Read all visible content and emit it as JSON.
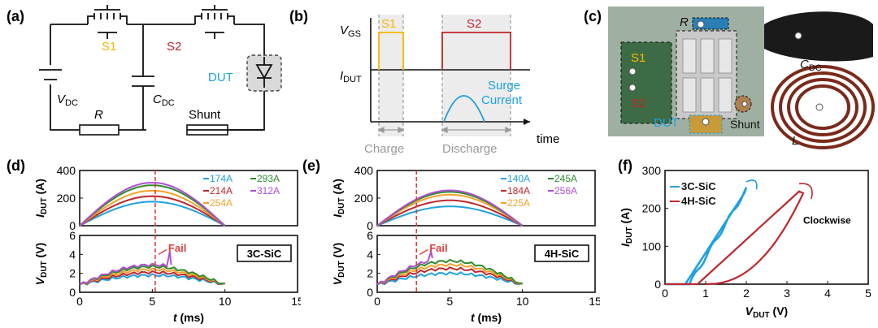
{
  "panels": {
    "a": {
      "letter": "(a)",
      "labels": {
        "s1": "S1",
        "s2": "S2",
        "vdc": "V",
        "vdc_sub": "DC",
        "cdc": "C",
        "cdc_sub": "DC",
        "dut": "DUT",
        "r": "R",
        "shunt": "Shunt"
      }
    },
    "b": {
      "letter": "(b)",
      "labels": {
        "vgs": "V",
        "vgs_sub": "GS",
        "idut": "I",
        "idut_sub": "DUT",
        "s1": "S1",
        "s2": "S2",
        "surge1": "Surge",
        "surge2": "Current",
        "time": "time",
        "charge": "Charge",
        "discharge": "Discharge"
      }
    },
    "c": {
      "letter": "(c)",
      "labels": {
        "r": "R",
        "s1": "S1",
        "s2": "S2",
        "cdc": "C",
        "cdc_sub": "DC",
        "dut": "DUT",
        "shunt": "Shunt",
        "l": "L"
      }
    },
    "d": {
      "letter": "(d)",
      "device": "3C-SiC",
      "fail": "Fail"
    },
    "e": {
      "letter": "(e)",
      "device": "4H-SiC",
      "fail": "Fail"
    },
    "f": {
      "letter": "(f)",
      "clockwise": "Clockwise"
    }
  },
  "colors": {
    "yellow": "#F5B800",
    "red": "#C0262D",
    "blue": "#1EA1E0",
    "green": "#2E8B2E",
    "purple": "#B04FD0",
    "orange": "#F4A12A",
    "dashred": "#E23C3C",
    "grey": "#888888"
  },
  "chart_data": [
    {
      "id": "d",
      "type": "line",
      "ylabel_top": "I",
      "ylabel_top_sub": "DUT",
      "ylabel_top_unit": " (A)",
      "ylabel_bot": "V",
      "ylabel_bot_sub": "DUT",
      "ylabel_bot_unit": " (V)",
      "xlabel": "t",
      "xlabel_unit": " (ms)",
      "xlim": [
        0,
        15
      ],
      "xticks": [
        "0",
        "5",
        "10",
        "15"
      ],
      "ylim_top": [
        0,
        400
      ],
      "yticks_top": [
        "0",
        "200",
        "400"
      ],
      "ylim_bot": [
        0,
        6
      ],
      "yticks_bot": [
        "0",
        "2",
        "4",
        "6"
      ],
      "fail_t": 5.2,
      "series": [
        {
          "name": "174A",
          "color": "#1EA1E0",
          "peak": 174,
          "vpeak": 1.8
        },
        {
          "name": "214A",
          "color": "#C0262D",
          "peak": 214,
          "vpeak": 2.1
        },
        {
          "name": "254A",
          "color": "#F4A12A",
          "peak": 254,
          "vpeak": 2.4
        },
        {
          "name": "293A",
          "color": "#2E8B2E",
          "peak": 293,
          "vpeak": 2.7
        },
        {
          "name": "312A",
          "color": "#B04FD0",
          "peak": 312,
          "vpeak": 2.9,
          "fail": true
        }
      ],
      "legend_order": [
        0,
        3,
        1,
        4,
        2
      ]
    },
    {
      "id": "e",
      "type": "line",
      "ylabel_top": "I",
      "ylabel_top_sub": "DUT",
      "ylabel_top_unit": " (A)",
      "ylabel_bot": "V",
      "ylabel_bot_sub": "DUT",
      "ylabel_bot_unit": " (V)",
      "xlabel": "t",
      "xlabel_unit": " (ms)",
      "xlim": [
        0,
        15
      ],
      "xticks": [
        "0",
        "5",
        "10",
        "15"
      ],
      "ylim_top": [
        0,
        400
      ],
      "yticks_top": [
        "0",
        "200",
        "400"
      ],
      "ylim_bot": [
        0,
        6
      ],
      "yticks_bot": [
        "0",
        "2",
        "4",
        "6"
      ],
      "fail_t": 2.7,
      "series": [
        {
          "name": "140A",
          "color": "#1EA1E0",
          "peak": 140,
          "vpeak": 2.0
        },
        {
          "name": "184A",
          "color": "#C0262D",
          "peak": 184,
          "vpeak": 2.5
        },
        {
          "name": "225A",
          "color": "#F4A12A",
          "peak": 225,
          "vpeak": 2.9
        },
        {
          "name": "245A",
          "color": "#2E8B2E",
          "peak": 245,
          "vpeak": 3.3
        },
        {
          "name": "256A",
          "color": "#B04FD0",
          "peak": 256,
          "vpeak": 3.6,
          "fail": true
        }
      ],
      "legend_order": [
        0,
        3,
        1,
        4,
        2
      ]
    },
    {
      "id": "f",
      "type": "scatter",
      "xlabel": "V",
      "xlabel_sub": "DUT",
      "xlabel_unit": " (V)",
      "ylabel": "I",
      "ylabel_sub": "DUT",
      "ylabel_unit": " (A)",
      "xlim": [
        0,
        5
      ],
      "xticks": [
        "0",
        "1",
        "2",
        "3",
        "4",
        "5"
      ],
      "ylim": [
        0,
        300
      ],
      "yticks": [
        "0",
        "100",
        "200",
        "300"
      ],
      "series": [
        {
          "name": "3C-SiC",
          "color": "#1EA1E0",
          "vmax": 2.0,
          "imax": 250
        },
        {
          "name": "4H-SiC",
          "color": "#C0262D",
          "vmax": 3.4,
          "imax": 245
        }
      ]
    }
  ]
}
